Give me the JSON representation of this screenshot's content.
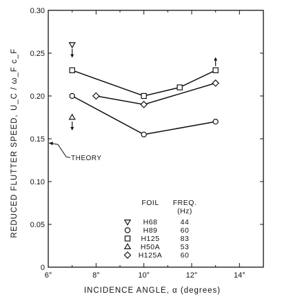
{
  "chart_data": {
    "type": "line",
    "xlabel": "INCIDENCE ANGLE,  α (degrees)",
    "ylabel": "REDUCED  FLUTTER  SPEED,",
    "ylabel_formula": "U_C / ω_F c_F",
    "xlim": [
      6,
      15
    ],
    "ylim": [
      0,
      0.3
    ],
    "x_ticks": [
      6,
      8,
      10,
      12,
      14
    ],
    "x_tick_labels": [
      "6°",
      "8°",
      "10°",
      "12°",
      "14°"
    ],
    "y_ticks": [
      0,
      0.05,
      0.1,
      0.15,
      0.2,
      0.25,
      0.3
    ],
    "y_tick_labels": [
      "0",
      "0.05",
      "0.10",
      "0.15",
      "0.20",
      "0.25",
      "0.30"
    ],
    "grid": false,
    "series": [
      {
        "name": "H68",
        "marker": "triangle-down",
        "freq": "44",
        "connected": false,
        "points": [
          {
            "x": 7,
            "y": 0.26,
            "arrow": "down"
          }
        ]
      },
      {
        "name": "H89",
        "marker": "circle",
        "freq": "60",
        "connected": true,
        "points": [
          {
            "x": 7,
            "y": 0.2
          },
          {
            "x": 10,
            "y": 0.155
          },
          {
            "x": 13,
            "y": 0.17
          }
        ]
      },
      {
        "name": "H125",
        "marker": "square",
        "freq": "83",
        "connected": true,
        "points": [
          {
            "x": 7,
            "y": 0.23
          },
          {
            "x": 10,
            "y": 0.2
          },
          {
            "x": 11.5,
            "y": 0.21
          },
          {
            "x": 13,
            "y": 0.23,
            "arrow": "up"
          }
        ]
      },
      {
        "name": "H50A",
        "marker": "triangle-up",
        "freq": "53",
        "connected": false,
        "points": [
          {
            "x": 7,
            "y": 0.175,
            "arrow": "down"
          }
        ]
      },
      {
        "name": "H125A",
        "marker": "diamond",
        "freq": "60",
        "connected": true,
        "points": [
          {
            "x": 8,
            "y": 0.2
          },
          {
            "x": 10,
            "y": 0.19
          },
          {
            "x": 13,
            "y": 0.215
          }
        ]
      }
    ],
    "legend": {
      "position": "bottom-center",
      "header_foil": "FOIL",
      "header_freq": "FREQ.",
      "header_unit": "(Hz)"
    },
    "annotation": {
      "text": "THEORY",
      "y": 0.145
    }
  }
}
